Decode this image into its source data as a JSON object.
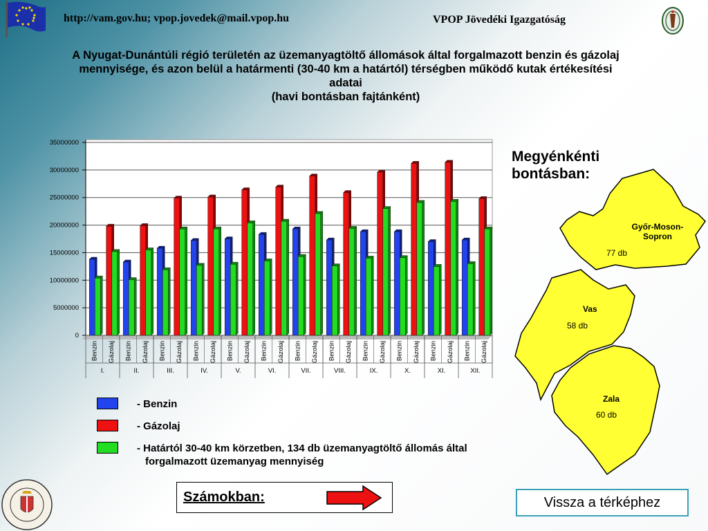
{
  "header": {
    "url": "http://vam.gov.hu; vpop.jovedek@mail.vpop.hu",
    "org": "VPOP Jövedéki Igazgatóság",
    "flag_icon": "eu-flag-icon",
    "emblem_icon": "customs-emblem-icon"
  },
  "title": {
    "line1": "A Nyugat-Dunántúli régió területén az üzemanyagtöltő állomások által forgalmazott benzin és gázolaj",
    "line2": "mennyisége, és azon belül a határmenti (30-40 km a határtól) térségben működő kutak értékesítési",
    "line3": "adatai",
    "line4": "(havi bontásban fajtánként)"
  },
  "chart_data": {
    "type": "bar",
    "categories": [
      "I.",
      "II.",
      "III.",
      "IV.",
      "V.",
      "VI.",
      "VII.",
      "VIII.",
      "IX.",
      "X.",
      "XI.",
      "XII."
    ],
    "sub_labels": [
      "Benzin",
      "Gázolaj"
    ],
    "ylim": [
      0,
      35000000
    ],
    "yticks": [
      0,
      5000000,
      10000000,
      15000000,
      20000000,
      25000000,
      30000000,
      35000000
    ],
    "grid": true,
    "series": [
      {
        "name": "Benzin",
        "color": "#2244ee",
        "slot": 0,
        "values": [
          13800000,
          13300000,
          15800000,
          17200000,
          17500000,
          18300000,
          19300000,
          17300000,
          18800000,
          18800000,
          17000000,
          17300000
        ]
      },
      {
        "name": "Határtól 30-40 km körzetben, 134 db üzemanyagtöltő állomás által forgalmazott üzemanyag mennyiség",
        "color": "#22dd22",
        "slot": 0.5,
        "values": [
          10400000,
          10100000,
          11900000,
          12700000,
          12900000,
          13500000,
          14300000,
          12600000,
          14000000,
          14100000,
          12500000,
          13000000
        ]
      },
      {
        "name": "Gázolaj",
        "color": "#ee1111",
        "slot": 1,
        "values": [
          19800000,
          19900000,
          24900000,
          25100000,
          26400000,
          26900000,
          28900000,
          25900000,
          29600000,
          31200000,
          31400000,
          24800000
        ]
      },
      {
        "name": "Határtól 30-40 km körzetben, 134 db üzemanyagtöltő állomás által forgalmazott üzemanyag mennyiség",
        "color": "#22dd22",
        "slot": 1.5,
        "values": [
          15200000,
          15500000,
          19300000,
          19300000,
          20400000,
          20700000,
          22100000,
          19400000,
          23000000,
          24100000,
          24300000,
          19300000
        ]
      }
    ]
  },
  "legend": {
    "items": [
      {
        "color": "#2244ee",
        "text": "-  Benzin"
      },
      {
        "color": "#ee1111",
        "text": "- Gázolaj"
      },
      {
        "color": "#22dd22",
        "text": "- Határtól 30-40 km körzetben, 134 db üzemanyagtöltő állomás által",
        "text2": "forgalmazott üzemanyag mennyiség"
      }
    ]
  },
  "map": {
    "heading1": "Megyénkénti",
    "heading2": "bontásban:",
    "fill": "#ffff33",
    "counties": [
      {
        "name": "Győr-Moson-Sopron",
        "name_line1": "Győr-Moson-",
        "name_line2": "Sopron",
        "count": "77 db"
      },
      {
        "name": "Vas",
        "count": "58 db"
      },
      {
        "name": "Zala",
        "count": "60 db"
      }
    ]
  },
  "footer": {
    "szamokban": "Számokban:",
    "back_button": "Vissza a térképhez",
    "anniversary_logo": "140 ÉVES A VÁM- ÉS PÉNZÜGYŐRSÉG 1867 2007",
    "logo_icon": "anniversary-seal-icon"
  }
}
